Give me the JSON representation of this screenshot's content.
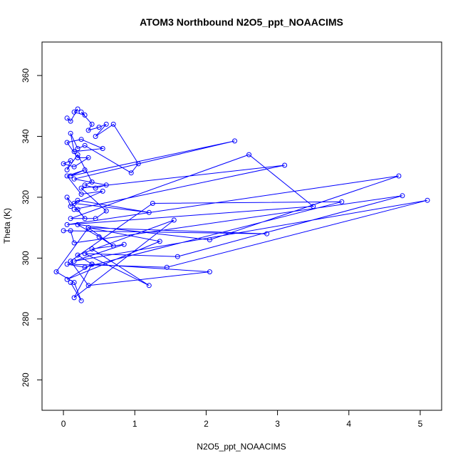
{
  "chart_data": {
    "type": "line",
    "title": "ATOM3 Northbound N2O5_ppt_NOAACIMS",
    "xlabel": "N2O5_ppt_NOAACIMS",
    "ylabel": "Theta (K)",
    "xlim": [
      -0.3,
      5.3
    ],
    "ylim": [
      250,
      371
    ],
    "xticks": [
      0,
      1,
      2,
      3,
      4,
      5
    ],
    "yticks": [
      260,
      280,
      300,
      320,
      340,
      360
    ],
    "grid": false,
    "line_color": "#0000ff",
    "marker": "open-circle",
    "series": [
      {
        "x": [
          0.05,
          0.1,
          0.2,
          0.15,
          0.3,
          0.25,
          0.4,
          0.35,
          0.5,
          0.6,
          0.45,
          0.7,
          1.05,
          0.95,
          0.3,
          0.2,
          0.1,
          0.15,
          0.55,
          0.25,
          0.05,
          0.2,
          0.35,
          0.15,
          0.0,
          0.1,
          0.05,
          0.2,
          0.4,
          0.3,
          0.45,
          0.6,
          0.15,
          2.4,
          0.1,
          0.3,
          0.05,
          0.25,
          0.55,
          0.15,
          1.2,
          0.2,
          0.1,
          0.05,
          0.3,
          0.2,
          0.15,
          3.1,
          0.25,
          0.6,
          0.45,
          0.1,
          2.6,
          3.5,
          0.05,
          4.7,
          2.05,
          0.2,
          0.5,
          0.7,
          0.35,
          2.85,
          0.0,
          0.1,
          0.15,
          4.75,
          1.6,
          0.3,
          1.2,
          0.4,
          0.85,
          0.15,
          5.1,
          1.45,
          0.05,
          0.3,
          3.9,
          1.25,
          0.1,
          0.35,
          2.05,
          0.4,
          0.2,
          1.55,
          0.15,
          0.4,
          0.05,
          1.35,
          0.35,
          -0.1,
          0.15,
          0.25,
          0.1
        ],
        "y": [
          346,
          345,
          349,
          348,
          347,
          348,
          344,
          342,
          343,
          344,
          340,
          344,
          331,
          328,
          337,
          336,
          341,
          335,
          336,
          339,
          338,
          333,
          333,
          330,
          331,
          332,
          329,
          334,
          325,
          324,
          323,
          324,
          326,
          338.5,
          327,
          329,
          327,
          321,
          322,
          318,
          315,
          319,
          317,
          320,
          313,
          316,
          316,
          330.5,
          323,
          315.5,
          313,
          313,
          334,
          317,
          311,
          327,
          306,
          311,
          307,
          304,
          310,
          308,
          309,
          309,
          305,
          320.5,
          300.5,
          301.5,
          291,
          303,
          304.5,
          299,
          319,
          297,
          298,
          297,
          318.5,
          318,
          299,
          291,
          295.5,
          298,
          301,
          312.5,
          287,
          298,
          293,
          305.5,
          310,
          295.5,
          292,
          286,
          292
        ]
      }
    ]
  }
}
